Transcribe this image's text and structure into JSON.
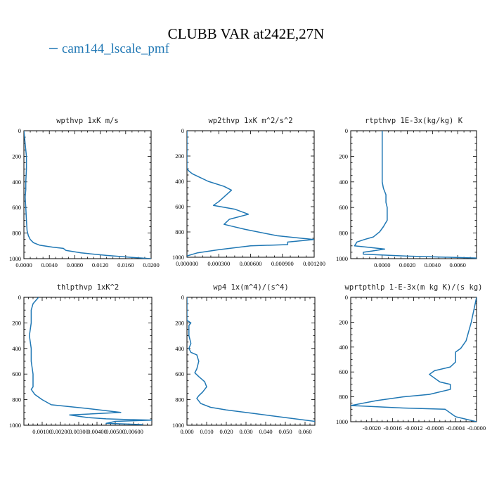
{
  "figure": {
    "title": "CLUBB VAR at242E,27N",
    "legend_label": "cam144_lscale_pmf",
    "line_color": "#1f77b4"
  },
  "chart_data": [
    {
      "type": "line",
      "title": "wpthvp  1xK m/s",
      "xlim": [
        0.0,
        0.02
      ],
      "ylim": [
        1000,
        0
      ],
      "xticks": [
        "0.0000",
        "0.0040",
        "0.0080",
        "0.0120",
        "0.0160",
        "0.0200"
      ],
      "xtick_values": [
        0.0,
        0.004,
        0.008,
        0.012,
        0.016,
        0.02
      ],
      "yticks": [
        "0",
        "200",
        "400",
        "600",
        "800",
        "1000"
      ],
      "series": [
        {
          "x": [
            0.0,
            0.0002,
            0.0004,
            0.0004,
            0.0003,
            0.0003,
            0.0002,
            0.0003,
            0.0004,
            0.0005,
            0.0007,
            0.001,
            0.0015,
            0.0025,
            0.0045,
            0.0062,
            0.0066,
            0.009,
            0.013,
            0.017,
            0.02
          ],
          "y": [
            0,
            100,
            200,
            300,
            400,
            460,
            520,
            600,
            700,
            780,
            820,
            850,
            875,
            895,
            910,
            920,
            935,
            955,
            975,
            990,
            1000
          ]
        }
      ]
    },
    {
      "type": "line",
      "title": "wp2thvp  1xK m^2/s^2",
      "xlim": [
        0.0,
        0.0012
      ],
      "ylim": [
        1000,
        0
      ],
      "xticks": [
        "0.000000",
        "0.000300",
        "0.000600",
        "0.000900",
        "0.001200"
      ],
      "xtick_values": [
        0.0,
        0.0003,
        0.0006,
        0.0009,
        0.0012
      ],
      "yticks": [
        "0",
        "200",
        "400",
        "600",
        "800",
        "1000"
      ],
      "series": [
        {
          "x": [
            0.0,
            0.0,
            2e-05,
            5e-05,
            0.0001,
            0.0002,
            0.00035,
            0.00042,
            0.0003,
            0.00025,
            0.00045,
            0.00058,
            0.0004,
            0.00035,
            0.00045,
            0.00055,
            0.00085,
            0.00108,
            0.0012,
            0.00095,
            0.00095,
            0.0006,
            0.0003,
            0.0001,
            0.0
          ],
          "y": [
            0,
            300,
            320,
            340,
            360,
            400,
            440,
            470,
            560,
            590,
            620,
            660,
            700,
            740,
            760,
            780,
            830,
            850,
            860,
            880,
            900,
            910,
            940,
            965,
            990
          ]
        }
      ]
    },
    {
      "type": "line",
      "title": "rtpthvp  1E-3x(kg/kg) K",
      "xlim": [
        -0.0025,
        0.0075
      ],
      "ylim": [
        1000,
        0
      ],
      "xticks": [
        "0.0000",
        "0.0020",
        "0.0040",
        "0.0060"
      ],
      "xtick_values": [
        0.0,
        0.002,
        0.004,
        0.006
      ],
      "yticks": [
        "0",
        "200",
        "400",
        "600",
        "800",
        "1000"
      ],
      "series": [
        {
          "x": [
            0.0,
            0.0,
            0.0,
            0.0001,
            0.0003,
            0.0003,
            0.0004,
            0.0004,
            0.0001,
            -0.0002,
            -0.0007,
            -0.0014,
            -0.002,
            -0.0022,
            -0.0012,
            0.0002,
            -0.0008,
            -0.0015,
            -0.0015,
            0.002,
            0.0075
          ],
          "y": [
            0,
            200,
            400,
            450,
            500,
            560,
            600,
            700,
            750,
            790,
            830,
            850,
            870,
            900,
            910,
            925,
            940,
            950,
            965,
            980,
            995
          ]
        }
      ]
    },
    {
      "type": "line",
      "title": "thlpthvp  1xK^2",
      "xlim": [
        0.0,
        0.007
      ],
      "ylim": [
        1000,
        0
      ],
      "xticks": [
        "0.00100",
        "0.00200",
        "0.00300",
        "0.00400",
        "0.00500",
        "0.00600"
      ],
      "xtick_values": [
        0.001,
        0.002,
        0.003,
        0.004,
        0.005,
        0.006
      ],
      "yticks": [
        "0",
        "200",
        "400",
        "600",
        "800",
        "1000"
      ],
      "series": [
        {
          "x": [
            0.0008,
            0.0005,
            0.0004,
            0.0004,
            0.0003,
            0.0004,
            0.0004,
            0.0005,
            0.0005,
            0.0004,
            0.0006,
            0.001,
            0.0015,
            0.0035,
            0.0053,
            0.0025,
            0.0035,
            0.0045,
            0.0055,
            0.007,
            0.005,
            0.0045,
            0.0065
          ],
          "y": [
            0,
            50,
            100,
            200,
            300,
            400,
            500,
            600,
            700,
            720,
            760,
            800,
            840,
            870,
            900,
            920,
            940,
            950,
            955,
            960,
            970,
            985,
            995
          ]
        }
      ]
    },
    {
      "type": "line",
      "title": "wp4  1x(m^4)/(s^4)",
      "xlim": [
        0.0,
        0.065
      ],
      "ylim": [
        1000,
        0
      ],
      "xticks": [
        "0.000",
        "0.010",
        "0.020",
        "0.030",
        "0.040",
        "0.050",
        "0.060"
      ],
      "xtick_values": [
        0.0,
        0.01,
        0.02,
        0.03,
        0.04,
        0.05,
        0.06
      ],
      "yticks": [
        "0",
        "200",
        "400",
        "600",
        "800",
        "1000"
      ],
      "series": [
        {
          "x": [
            0.0,
            0.0,
            0.002,
            0.001,
            0.001,
            0.002,
            0.001,
            0.002,
            0.005,
            0.006,
            0.005,
            0.004,
            0.006,
            0.009,
            0.01,
            0.008,
            0.006,
            0.005,
            0.007,
            0.012,
            0.02,
            0.035,
            0.05,
            0.065
          ],
          "y": [
            0,
            180,
            200,
            220,
            300,
            360,
            400,
            430,
            450,
            500,
            560,
            590,
            620,
            660,
            700,
            740,
            770,
            790,
            830,
            860,
            880,
            910,
            940,
            970
          ]
        }
      ]
    },
    {
      "type": "line",
      "title": "wprtpthlp  1-E-3x(m kg K)/(s kg)",
      "xlim": [
        -0.0024,
        0.0
      ],
      "ylim": [
        1000,
        0
      ],
      "xticks": [
        "-0.0020",
        "-0.0016",
        "-0.0012",
        "-0.0008",
        "-0.0004",
        "-0.0000"
      ],
      "xtick_values": [
        -0.002,
        -0.0016,
        -0.0012,
        -0.0008,
        -0.0004,
        0.0
      ],
      "yticks": [
        "0",
        "200",
        "400",
        "600",
        "800",
        "1000"
      ],
      "series": [
        {
          "x": [
            0.0,
            -0.0001,
            -0.0002,
            -0.0003,
            -0.0004,
            -0.0004,
            -0.0005,
            -0.0008,
            -0.0009,
            -0.0007,
            -0.0005,
            -0.0005,
            -0.0009,
            -0.0014,
            -0.0019,
            -0.0024,
            -0.0014,
            -0.0006,
            -0.0004,
            0.0
          ],
          "y": [
            0,
            200,
            350,
            410,
            440,
            520,
            560,
            590,
            620,
            680,
            700,
            740,
            780,
            800,
            830,
            870,
            890,
            900,
            960,
            1000
          ]
        }
      ]
    }
  ]
}
